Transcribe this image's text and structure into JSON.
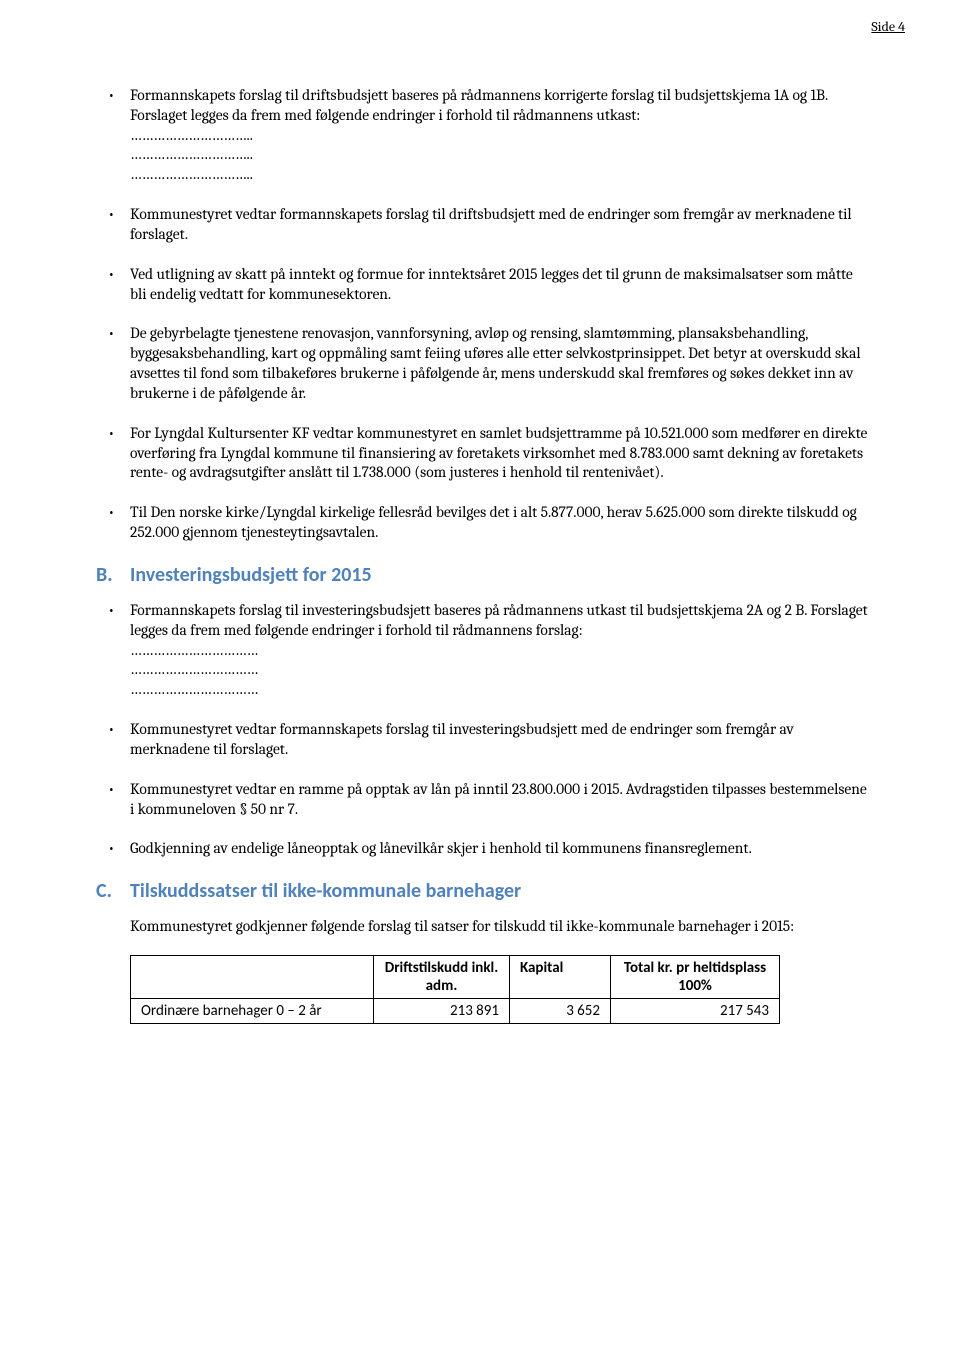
{
  "page_label": "Side 4",
  "bullets_top": [
    {
      "text": "Formannskapets forslag til driftsbudsjett baseres på rådmannens korrigerte forslag til budsjettskjema 1A og 1B.  Forslaget legges da frem med følgende endringer i forhold til rådmannens utkast:",
      "dotted_lines": [
        "…………………………..",
        "…………………………..",
        "………………………….."
      ]
    },
    {
      "text": "Kommunestyret vedtar formannskapets forslag til driftsbudsjett med de endringer som fremgår av merknadene til forslaget."
    },
    {
      "text": "Ved utligning av skatt på inntekt og formue for inntektsåret 2015 legges det til grunn de maksimalsatser som måtte bli endelig vedtatt for kommunesektoren."
    },
    {
      "text": "De gebyrbelagte tjenestene renovasjon, vannforsyning, avløp og rensing, slamtømming, plansaksbehandling, byggesaksbehandling, kart og oppmåling samt feiing uføres alle etter selvkostprinsippet.  Det betyr at overskudd skal avsettes til fond som tilbakeføres brukerne i påfølgende år, mens underskudd skal fremføres og søkes dekket inn av brukerne i de påfølgende år."
    },
    {
      "text": "For Lyngdal Kultursenter KF vedtar kommunestyret en samlet budsjettramme på 10.521.000 som medfører en direkte overføring fra Lyngdal kommune til finansiering av foretakets virksomhet med 8.783.000 samt dekning av foretakets rente- og avdragsutgifter anslått til 1.738.000 (som justeres i henhold til rentenivået)."
    },
    {
      "text": "Til Den norske kirke/Lyngdal kirkelige fellesråd bevilges det i alt 5.877.000, herav 5.625.000 som direkte tilskudd og 252.000 gjennom tjenesteytingsavtalen."
    }
  ],
  "section_b": {
    "letter": "B.",
    "title": "Investeringsbudsjett for 2015",
    "bullets": [
      {
        "text": "Formannskapets forslag til investeringsbudsjett baseres på rådmannens utkast til budsjettskjema 2A og 2 B. Forslaget legges da frem med følgende endringer i forhold til rådmannens forslag:",
        "dotted_lines": [
          "……………………………",
          "……………………………",
          "……………………………"
        ]
      },
      {
        "text": "Kommunestyret vedtar formannskapets forslag til investeringsbudsjett med de endringer som fremgår av merknadene til forslaget."
      },
      {
        "text": "Kommunestyret vedtar en ramme på opptak av lån på inntil 23.800.000 i 2015.  Avdragstiden tilpasses bestemmelsene i kommuneloven § 50 nr 7."
      },
      {
        "text": "Godkjenning av endelige låneopptak og lånevilkår skjer i henhold til kommunens finansreglement."
      }
    ]
  },
  "section_c": {
    "letter": "C.",
    "title": "Tilskuddssatser til ikke-kommunale barnehager",
    "intro": "Kommunestyret godkjenner følgende forslag til satser for tilskudd til ikke-kommunale barnehager i 2015:",
    "table": {
      "headers": {
        "blank": "",
        "drift": "Driftstilskudd inkl. adm.",
        "kapital": "Kapital",
        "total": "Total kr. pr heltidsplass 100%"
      },
      "row": {
        "label": "Ordinære barnehager 0 – 2 år",
        "drift": "213 891",
        "kapital": "3 652",
        "total": "217 543"
      }
    }
  }
}
